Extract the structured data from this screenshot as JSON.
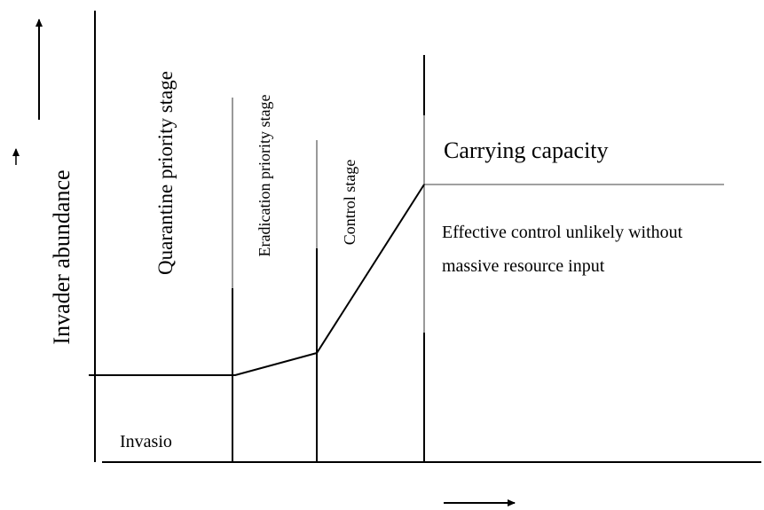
{
  "y_axis_label": "Invader abundance",
  "stages": [
    "Quarantine priority stage",
    "Eradication priority stage",
    "Control stage"
  ],
  "carrying_capacity": "Carrying capacity",
  "note_lines": [
    "Effective control unlikely without",
    "massive resource input"
  ],
  "invasion_label": "Invasio"
}
